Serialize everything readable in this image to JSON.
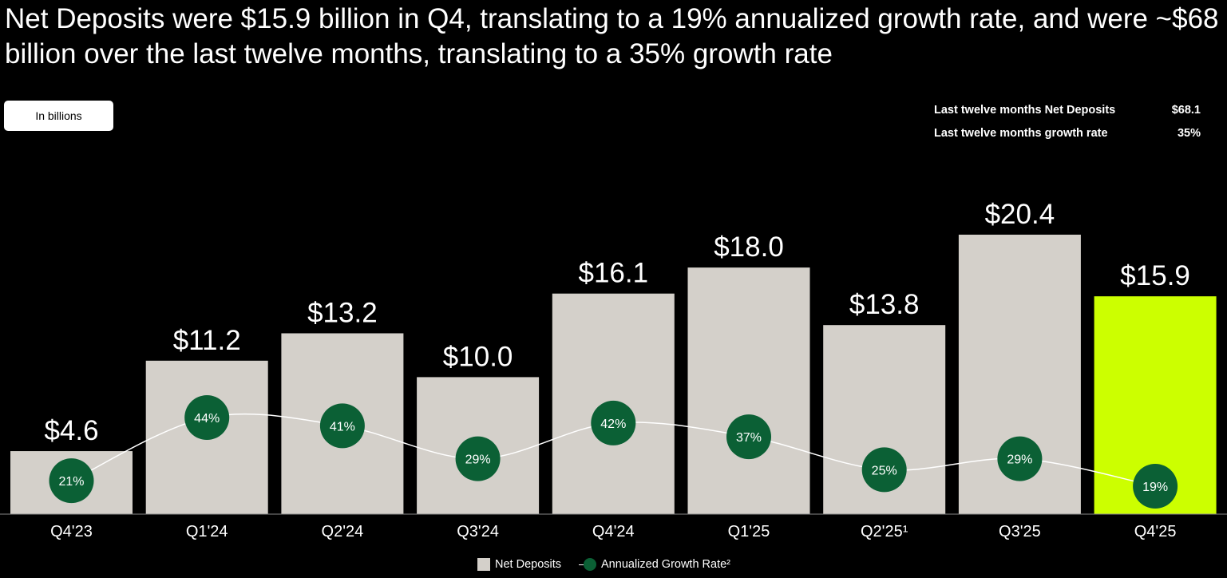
{
  "title": "Net Deposits were $15.9 billion in Q4, translating to a 19% annualized growth rate, and were ~$68 billion over the last twelve months, translating to a 35% growth rate",
  "unit_badge": "In billions",
  "ltm": [
    {
      "label": "Last twelve months Net Deposits",
      "value": "$68.1"
    },
    {
      "label": "Last twelve months growth rate",
      "value": "35%"
    }
  ],
  "chart_data": {
    "type": "bar",
    "categories": [
      "Q4'23",
      "Q1'24",
      "Q2'24",
      "Q3'24",
      "Q4'24",
      "Q1'25",
      "Q2'25¹",
      "Q3'25",
      "Q4'25"
    ],
    "series": [
      {
        "name": "Net Deposits",
        "type": "bar",
        "values": [
          4.6,
          11.2,
          13.2,
          10.0,
          16.1,
          18.0,
          13.8,
          20.4,
          15.9
        ],
        "labels": [
          "$4.6",
          "$11.2",
          "$13.2",
          "$10.0",
          "$16.1",
          "$18.0",
          "$13.8",
          "$20.4",
          "$15.9"
        ]
      },
      {
        "name": "Annualized Growth Rate²",
        "type": "line",
        "values": [
          21,
          44,
          41,
          29,
          42,
          37,
          25,
          29,
          19
        ],
        "labels": [
          "21%",
          "44%",
          "41%",
          "29%",
          "42%",
          "37%",
          "25%",
          "29%",
          "19%"
        ]
      }
    ],
    "colors": {
      "bar": "#d4d0ca",
      "highlight_bar": "#ccff00",
      "growth_marker": "#0b6035",
      "line": "#ffffff"
    },
    "highlight_category": "Q4'25",
    "legend": "bottom-center",
    "grid": false
  }
}
